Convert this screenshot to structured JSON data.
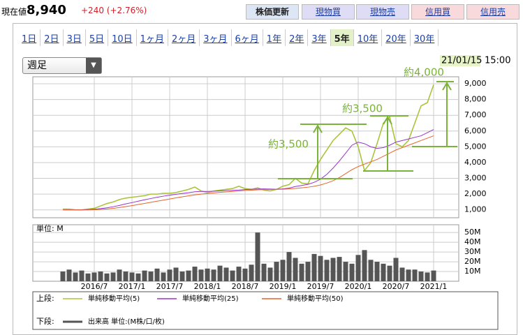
{
  "header": {
    "label": "現在値",
    "price": "8,940",
    "change": "+240 (+2.76%)",
    "refresh": "株価更新",
    "buttons": [
      "現物買",
      "現物売",
      "信用買",
      "信用売"
    ]
  },
  "tabs": {
    "items": [
      "1日",
      "2日",
      "3日",
      "5日",
      "10日",
      "1ヶ月",
      "2ヶ月",
      "3ヶ月",
      "6ヶ月",
      "1年",
      "2年",
      "3年",
      "5年",
      "10年",
      "20年",
      "30年"
    ],
    "selected": 12
  },
  "period_select": "週足",
  "chart_data": {
    "type": "line",
    "date": "21/01/15",
    "time": "15:00",
    "categories": [
      null,
      null,
      null,
      null,
      null,
      "2016/7",
      null,
      null,
      null,
      null,
      null,
      "2017/1",
      null,
      null,
      null,
      null,
      null,
      "2017/7",
      null,
      null,
      null,
      null,
      null,
      "2018/1",
      null,
      null,
      null,
      null,
      null,
      "2018/7",
      null,
      null,
      null,
      null,
      null,
      "2019/1",
      null,
      null,
      null,
      null,
      null,
      "2019/7",
      null,
      null,
      null,
      null,
      null,
      "2020/1",
      null,
      null,
      null,
      null,
      null,
      "2020/7",
      null,
      null,
      null,
      null,
      null,
      "2021/1"
    ],
    "ylim": [
      500,
      9400
    ],
    "yticks": [
      {
        "value": 1000,
        "label": "1,000"
      },
      {
        "value": 2000,
        "label": "2,000"
      },
      {
        "value": 3000,
        "label": "3,000"
      },
      {
        "value": 4000,
        "label": "4,000"
      },
      {
        "value": 5000,
        "label": "5,000"
      },
      {
        "value": 6000,
        "label": "6,000"
      },
      {
        "value": 7000,
        "label": "7,000"
      },
      {
        "value": 8000,
        "label": "8,000"
      },
      {
        "value": 9000,
        "label": "9,000"
      }
    ],
    "grid": true,
    "legend_upper": "上段:",
    "legend_lower": "下段:",
    "series": [
      {
        "name": "単純移動平均(5)",
        "color": "#aac43a",
        "values": [
          1050,
          1050,
          1000,
          1000,
          1050,
          1100,
          1250,
          1400,
          1500,
          1650,
          1750,
          1800,
          1850,
          1900,
          2000,
          2000,
          2050,
          2050,
          2100,
          2200,
          2300,
          2450,
          2200,
          2100,
          2200,
          2250,
          2300,
          2350,
          2500,
          2350,
          2300,
          2400,
          2250,
          2200,
          2300,
          2500,
          2600,
          3000,
          2700,
          2650,
          3500,
          4200,
          4800,
          5400,
          5800,
          6200,
          6000,
          5000,
          3500,
          4000,
          5200,
          6500,
          6900,
          5200,
          5000,
          5400,
          6500,
          7600,
          7800,
          8940
        ]
      },
      {
        "name": "単純移動平均(25)",
        "color": "#9933cc",
        "values": [
          1000,
          1000,
          1000,
          1000,
          1020,
          1040,
          1080,
          1130,
          1200,
          1280,
          1380,
          1460,
          1550,
          1640,
          1720,
          1800,
          1870,
          1930,
          1990,
          2040,
          2090,
          2150,
          2170,
          2170,
          2180,
          2200,
          2220,
          2240,
          2260,
          2290,
          2310,
          2320,
          2330,
          2320,
          2310,
          2330,
          2380,
          2480,
          2550,
          2620,
          2750,
          2950,
          3250,
          3650,
          4100,
          4600,
          5100,
          5300,
          5200,
          5000,
          4900,
          4950,
          5100,
          5300,
          5400,
          5500,
          5600,
          5700,
          5900,
          6100
        ]
      },
      {
        "name": "単純移動平均(50)",
        "color": "#e8642c",
        "values": [
          1000,
          1000,
          1000,
          1000,
          1000,
          1010,
          1030,
          1060,
          1100,
          1150,
          1210,
          1270,
          1340,
          1410,
          1480,
          1550,
          1620,
          1690,
          1760,
          1830,
          1890,
          1950,
          2000,
          2040,
          2080,
          2110,
          2140,
          2170,
          2200,
          2230,
          2250,
          2270,
          2280,
          2290,
          2300,
          2310,
          2330,
          2360,
          2400,
          2440,
          2500,
          2580,
          2700,
          2850,
          3050,
          3300,
          3550,
          3750,
          3900,
          4050,
          4200,
          4400,
          4600,
          4800,
          4950,
          5100,
          5250,
          5400,
          5550,
          5700
        ]
      }
    ],
    "volume": {
      "name": "出来高 単位:(M株/口/枚)",
      "unit_label": "単位: M",
      "color": "#555555",
      "ylim": [
        0,
        58
      ],
      "yticks": [
        {
          "value": 10,
          "label": "10M"
        },
        {
          "value": 20,
          "label": "20M"
        },
        {
          "value": 30,
          "label": "30M"
        },
        {
          "value": 40,
          "label": "40M"
        },
        {
          "value": 50,
          "label": "50M"
        }
      ],
      "values": [
        10,
        12,
        9,
        11,
        8,
        9,
        10,
        8,
        9,
        12,
        10,
        9,
        8,
        11,
        10,
        13,
        9,
        12,
        14,
        10,
        11,
        15,
        12,
        13,
        12,
        16,
        14,
        11,
        15,
        13,
        17,
        50,
        18,
        14,
        20,
        22,
        30,
        24,
        18,
        20,
        28,
        26,
        22,
        24,
        25,
        20,
        18,
        27,
        32,
        22,
        20,
        18,
        16,
        24,
        14,
        12,
        12,
        10,
        9,
        11
      ]
    },
    "annotations": [
      "約3,500",
      "約3,500",
      "約4,000"
    ]
  }
}
